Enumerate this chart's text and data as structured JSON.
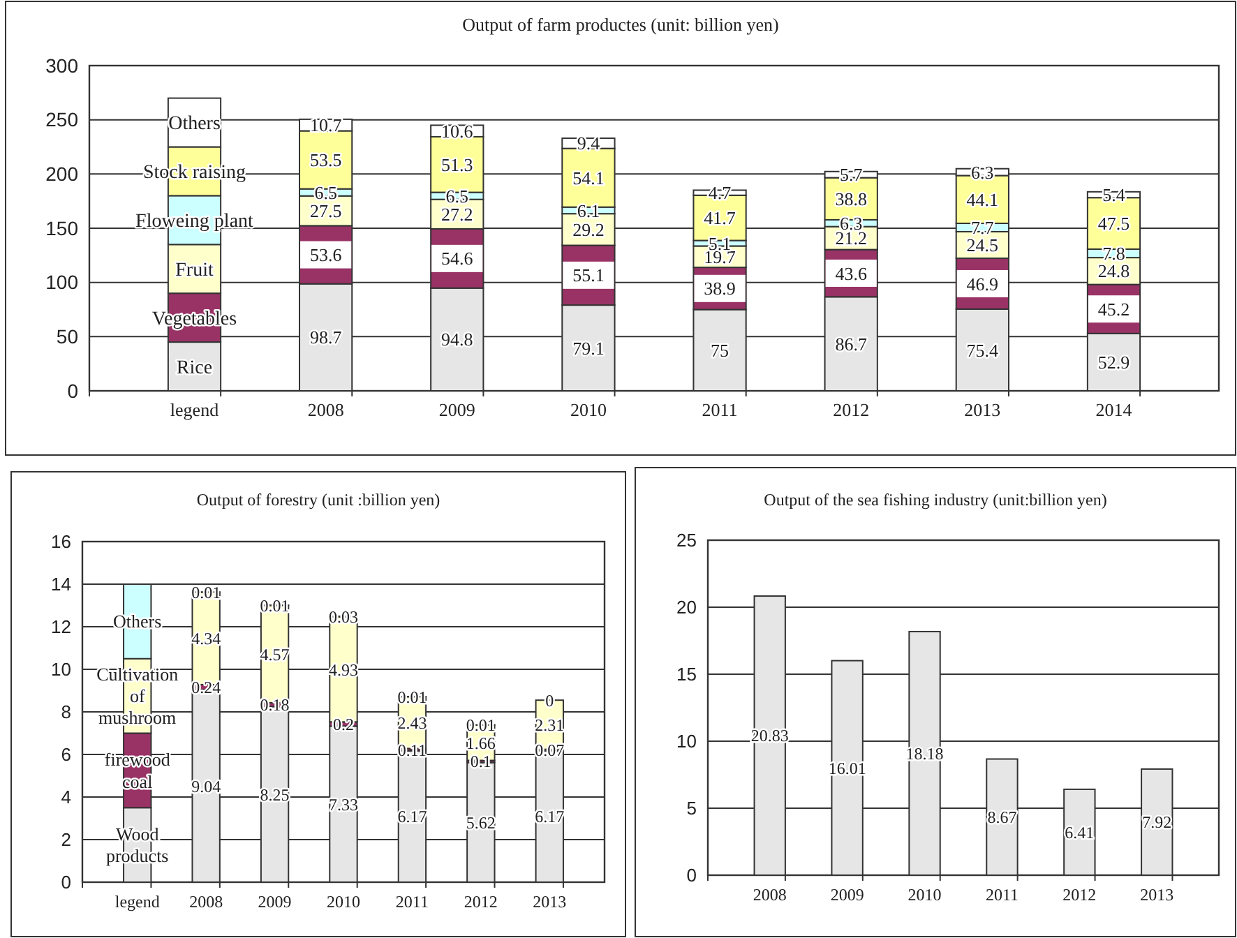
{
  "chart_data": [
    {
      "type": "bar",
      "title": "Output of farm productes (unit: billion yen)",
      "stacked": true,
      "grid": "y",
      "categories": [
        "legend",
        "2008",
        "2009",
        "2010",
        "2011",
        "2012",
        "2013",
        "2014"
      ],
      "ylim": [
        0,
        300
      ],
      "yticks": [
        0,
        50,
        100,
        150,
        200,
        250,
        300
      ],
      "series": [
        {
          "name": "Rice",
          "color": "#e6e6e6",
          "values": [
            45,
            98.7,
            94.8,
            79.1,
            75,
            86.7,
            75.4,
            52.9
          ],
          "value_labels": [
            null,
            "98.7",
            "94.8",
            "79.1",
            "75",
            "86.7",
            "75.4",
            "52.9"
          ]
        },
        {
          "name": "Vegetables",
          "color": "#993366",
          "values": [
            45,
            53.6,
            54.6,
            55.1,
            38.9,
            43.6,
            46.9,
            45.2
          ],
          "value_labels": [
            null,
            "53.6",
            "54.6",
            "55.1",
            "38.9",
            "43.6",
            "46.9",
            "45.2"
          ]
        },
        {
          "name": "Fruit",
          "color": "#ffffcc",
          "values": [
            45,
            27.5,
            27.2,
            29.2,
            19.7,
            21.2,
            24.5,
            24.8
          ],
          "value_labels": [
            null,
            "27.5",
            "27.2",
            "29.2",
            "19.7",
            "21.2",
            "24.5",
            "24.8"
          ]
        },
        {
          "name": "Floweing plant",
          "color": "#ccffff",
          "values": [
            45,
            6.5,
            6.5,
            6.1,
            5.1,
            6.3,
            7.7,
            7.8
          ],
          "value_labels": [
            null,
            "6.5",
            "6.5",
            "6.1",
            "5.1",
            "6.3",
            "7.7",
            "7.8"
          ]
        },
        {
          "name": "Stock raising",
          "color": "#ffff99",
          "values": [
            45,
            53.5,
            51.3,
            54.1,
            41.7,
            38.8,
            44.1,
            47.5
          ],
          "value_labels": [
            null,
            "53.5",
            "51.3",
            "54.1",
            "41.7",
            "38.8",
            "44.1",
            "47.5"
          ]
        },
        {
          "name": "Others",
          "color": "#ffffff",
          "values": [
            45,
            10.7,
            10.6,
            9.4,
            4.7,
            5.7,
            6.3,
            5.4
          ],
          "value_labels": [
            null,
            "10.7",
            "10.6",
            "9.4",
            "4.7",
            "5.7",
            "6.3",
            "5.4"
          ]
        }
      ]
    },
    {
      "type": "bar",
      "title": "Output of forestry (unit :billion yen)",
      "stacked": true,
      "grid": "y",
      "categories": [
        "legend",
        "2008",
        "2009",
        "2010",
        "2011",
        "2012",
        "2013"
      ],
      "ylim": [
        0,
        16
      ],
      "yticks": [
        0,
        2,
        4,
        6,
        8,
        10,
        12,
        14,
        16
      ],
      "series": [
        {
          "name": "Wood products",
          "color": "#e6e6e6",
          "values": [
            3.5,
            9.04,
            8.25,
            7.33,
            6.17,
            5.62,
            6.17
          ],
          "value_labels": [
            null,
            "9.04",
            "8.25",
            "7.33",
            "6.17",
            "5.62",
            "6.17"
          ]
        },
        {
          "name": "firewood coal",
          "color": "#993366",
          "values": [
            3.5,
            0.24,
            0.18,
            0.2,
            0.11,
            0.1,
            0.07
          ],
          "value_labels": [
            null,
            "0.24",
            "0.18",
            "0.2",
            "0.11",
            "0.1",
            "0.07"
          ]
        },
        {
          "name": "Cultivation of mushroom",
          "color": "#ffffcc",
          "values": [
            3.5,
            4.34,
            4.57,
            4.93,
            2.43,
            1.66,
            2.31
          ],
          "value_labels": [
            null,
            "4.34",
            "4.57",
            "4.93",
            "2.43",
            "1.66",
            "2.31"
          ]
        },
        {
          "name": "Others",
          "color": "#ccffff",
          "values": [
            3.5,
            0.01,
            0.01,
            0.03,
            0.01,
            0.01,
            0
          ],
          "value_labels": [
            null,
            "0.01",
            "0.01",
            "0.03",
            "0.01",
            "0.01",
            "0"
          ]
        }
      ]
    },
    {
      "type": "bar",
      "title": "Output of the sea fishing industry (unit:billion yen)",
      "grid": "y",
      "data_labels": true,
      "categories": [
        "2008",
        "2009",
        "2010",
        "2011",
        "2012",
        "2013"
      ],
      "ylim": [
        0,
        25
      ],
      "yticks": [
        0,
        5,
        10,
        15,
        20,
        25
      ],
      "color": "#e6e6e6",
      "values": [
        20.83,
        16.01,
        18.18,
        8.67,
        6.41,
        7.92
      ]
    }
  ]
}
